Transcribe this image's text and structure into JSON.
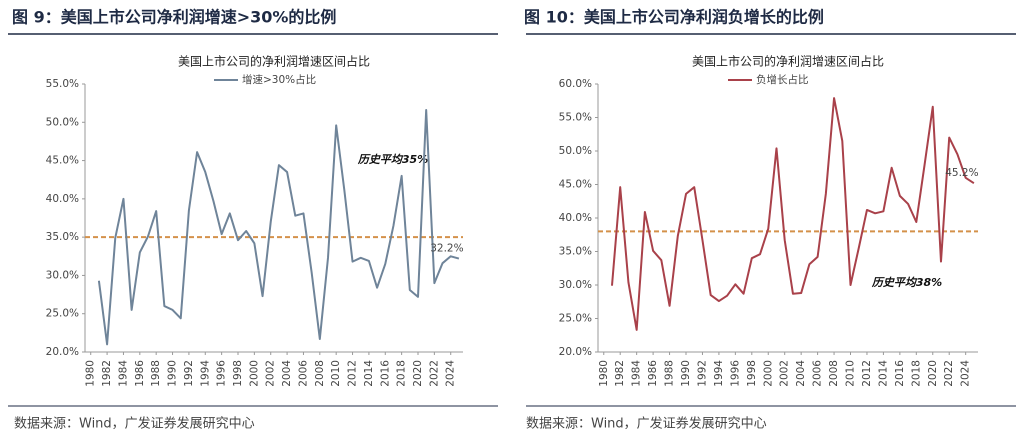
{
  "chart_data": [
    {
      "type": "line",
      "figure_title": "图 9：美国上市公司净利润增速>30%的比例",
      "title": "美国上市公司的净利润增速区间占比",
      "source": "数据来源：Wind，广发证券发展研究中心",
      "x": [
        1981,
        1982,
        1983,
        1984,
        1985,
        1986,
        1987,
        1988,
        1989,
        1990,
        1991,
        1992,
        1993,
        1994,
        1995,
        1996,
        1997,
        1998,
        1999,
        2000,
        2001,
        2002,
        2003,
        2004,
        2005,
        2006,
        2007,
        2008,
        2009,
        2010,
        2011,
        2012,
        2013,
        2014,
        2015,
        2016,
        2017,
        2018,
        2019,
        2020,
        2021,
        2022,
        2023,
        2024,
        2025
      ],
      "series": [
        {
          "name": "增速>30%占比",
          "color": "#6f8499",
          "values": [
            29.3,
            21.0,
            34.9,
            40.0,
            25.5,
            33.0,
            35.1,
            38.4,
            26.0,
            25.5,
            24.4,
            38.5,
            46.1,
            43.5,
            39.7,
            35.4,
            38.1,
            34.6,
            35.8,
            34.2,
            27.3,
            37.0,
            44.4,
            43.5,
            37.8,
            38.1,
            30.4,
            21.7,
            32.3,
            49.6,
            41.1,
            31.8,
            32.3,
            31.9,
            28.4,
            31.5,
            36.5,
            43.0,
            28.1,
            27.2,
            51.6,
            29.0,
            31.6,
            32.5,
            32.2
          ],
          "value_labels": [
            null,
            null,
            null,
            null,
            null,
            null,
            null,
            null,
            null,
            null,
            null,
            null,
            null,
            null,
            null,
            null,
            null,
            null,
            null,
            null,
            null,
            null,
            null,
            null,
            null,
            null,
            null,
            null,
            null,
            null,
            null,
            null,
            null,
            null,
            null,
            null,
            null,
            null,
            null,
            null,
            null,
            null,
            null,
            null,
            "32.2%"
          ]
        }
      ],
      "reference_line": {
        "value": 35,
        "color": "#d4914a",
        "label": "历史平均35%"
      },
      "xlim": [
        1979.3,
        2025.5
      ],
      "xticks": [
        1980,
        1982,
        1984,
        1986,
        1988,
        1990,
        1992,
        1994,
        1996,
        1998,
        2000,
        2002,
        2004,
        2006,
        2008,
        2010,
        2012,
        2014,
        2016,
        2018,
        2020,
        2022,
        2024
      ],
      "ylim": [
        20,
        55
      ],
      "yticks": [
        {
          "value": 20,
          "label": "20.0%"
        },
        {
          "value": 25,
          "label": "25.0%"
        },
        {
          "value": 30,
          "label": "30.0%"
        },
        {
          "value": 35,
          "label": "35.0%"
        },
        {
          "value": 40,
          "label": "40.0%"
        },
        {
          "value": 45,
          "label": "45.0%"
        },
        {
          "value": 50,
          "label": "50.0%"
        },
        {
          "value": 55,
          "label": "55.0%"
        }
      ],
      "grid": false
    },
    {
      "type": "line",
      "figure_title": "图 10：美国上市公司净利润负增长的比例",
      "title": "美国上市公司的净利润增速区间占比",
      "source": "数据来源：Wind，广发证券发展研究中心",
      "x": [
        1981,
        1982,
        1983,
        1984,
        1985,
        1986,
        1987,
        1988,
        1989,
        1990,
        1991,
        1992,
        1993,
        1994,
        1995,
        1996,
        1997,
        1998,
        1999,
        2000,
        2001,
        2002,
        2003,
        2004,
        2005,
        2006,
        2007,
        2008,
        2009,
        2010,
        2011,
        2012,
        2013,
        2014,
        2015,
        2016,
        2017,
        2018,
        2019,
        2020,
        2021,
        2022,
        2023,
        2024,
        2025
      ],
      "series": [
        {
          "name": "负增长占比",
          "color": "#a9414a",
          "values": [
            29.9,
            44.6,
            30.4,
            23.3,
            40.9,
            35.1,
            33.7,
            26.9,
            37.3,
            43.6,
            44.6,
            36.7,
            28.5,
            27.6,
            28.4,
            30.1,
            28.7,
            34.0,
            34.6,
            38.4,
            50.4,
            36.7,
            28.7,
            28.8,
            33.1,
            34.2,
            43.6,
            57.9,
            51.5,
            30.0,
            35.5,
            41.2,
            40.7,
            41.0,
            47.5,
            43.3,
            42.1,
            39.4,
            47.9,
            56.6,
            33.5,
            52.0,
            49.5,
            46.0,
            45.2
          ],
          "value_labels": [
            null,
            null,
            null,
            null,
            null,
            null,
            null,
            null,
            null,
            null,
            null,
            null,
            null,
            null,
            null,
            null,
            null,
            null,
            null,
            null,
            null,
            null,
            null,
            null,
            null,
            null,
            null,
            null,
            null,
            null,
            null,
            null,
            null,
            null,
            null,
            null,
            null,
            null,
            null,
            null,
            null,
            null,
            null,
            null,
            "45.2%"
          ]
        }
      ],
      "reference_line": {
        "value": 38,
        "color": "#d4914a",
        "label": "历史平均38%"
      },
      "xlim": [
        1979.3,
        2025.5
      ],
      "xticks": [
        1980,
        1982,
        1984,
        1986,
        1988,
        1990,
        1992,
        1994,
        1996,
        1998,
        2000,
        2002,
        2004,
        2006,
        2008,
        2010,
        2012,
        2014,
        2016,
        2018,
        2020,
        2022,
        2024
      ],
      "ylim": [
        20,
        60
      ],
      "yticks": [
        {
          "value": 20,
          "label": "20.0%"
        },
        {
          "value": 25,
          "label": "25.0%"
        },
        {
          "value": 30,
          "label": "30.0%"
        },
        {
          "value": 35,
          "label": "35.0%"
        },
        {
          "value": 40,
          "label": "40.0%"
        },
        {
          "value": 45,
          "label": "45.0%"
        },
        {
          "value": 50,
          "label": "50.0%"
        },
        {
          "value": 55,
          "label": "55.0%"
        },
        {
          "value": 60,
          "label": "60.0%"
        }
      ],
      "grid": false
    }
  ]
}
